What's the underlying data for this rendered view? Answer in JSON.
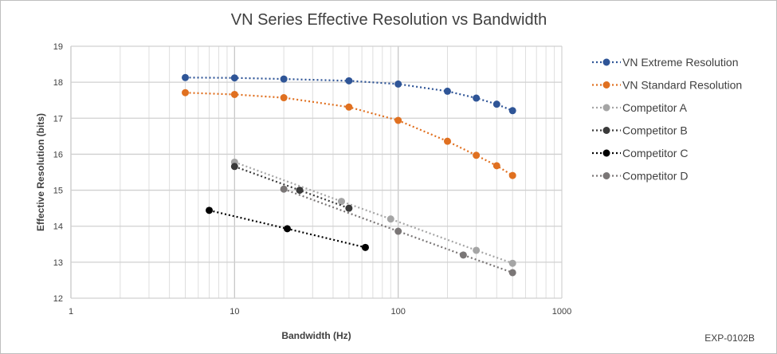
{
  "chart_data": {
    "type": "line",
    "title": "VN Series Effective Resolution vs Bandwidth",
    "xlabel": "Bandwidth (Hz)",
    "ylabel": "Effective Resolution (bits)",
    "xscale": "log",
    "xlim": [
      1,
      1000
    ],
    "ylim": [
      12,
      19
    ],
    "xticks": [
      "1",
      "10",
      "100",
      "1000"
    ],
    "yticks": [
      "12",
      "13",
      "14",
      "15",
      "16",
      "17",
      "18",
      "19"
    ],
    "grid": true,
    "legend": "right",
    "annotation": "EXP-0102B",
    "series": [
      {
        "name": "VN Extreme Resolution",
        "color": "#2F5597",
        "x": [
          5,
          10,
          20,
          50,
          100,
          200,
          300,
          400,
          500
        ],
        "y": [
          18.13,
          18.12,
          18.09,
          18.04,
          17.95,
          17.75,
          17.56,
          17.39,
          17.21
        ]
      },
      {
        "name": "VN Standard Resolution",
        "color": "#E07020",
        "x": [
          5,
          10,
          20,
          50,
          100,
          200,
          300,
          400,
          500
        ],
        "y": [
          17.71,
          17.66,
          17.57,
          17.31,
          16.94,
          16.36,
          15.97,
          15.68,
          15.41
        ]
      },
      {
        "name": "Competitor A",
        "color": "#A5A5A5",
        "x": [
          10,
          45,
          90,
          300,
          500
        ],
        "y": [
          15.78,
          14.69,
          14.2,
          13.33,
          12.97
        ]
      },
      {
        "name": "Competitor B",
        "color": "#3A3A3A",
        "x": [
          10,
          25,
          50
        ],
        "y": [
          15.66,
          15.0,
          14.5
        ]
      },
      {
        "name": "Competitor C",
        "color": "#000000",
        "x": [
          7,
          21,
          63
        ],
        "y": [
          14.44,
          13.93,
          13.41
        ]
      },
      {
        "name": "Competitor D",
        "color": "#7A7676",
        "x": [
          20,
          100,
          250,
          500
        ],
        "y": [
          15.03,
          13.86,
          13.2,
          12.71
        ]
      }
    ]
  }
}
